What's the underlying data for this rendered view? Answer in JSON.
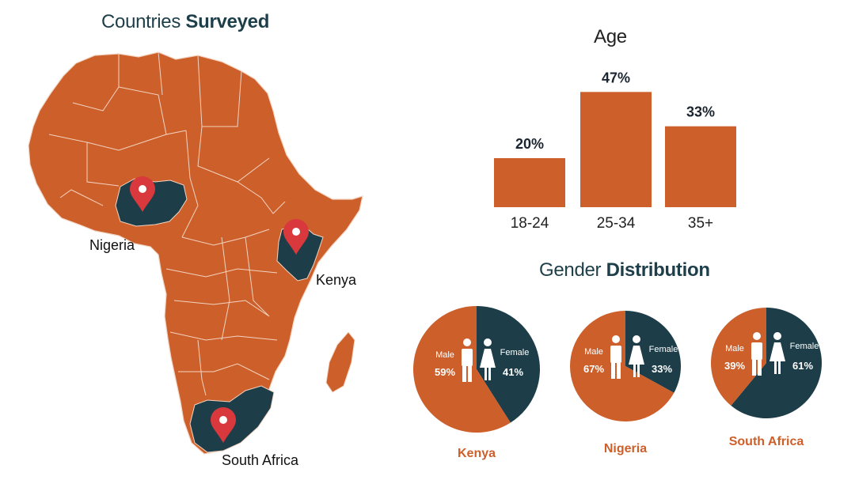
{
  "colors": {
    "orange": "#cd5f2a",
    "teal": "#1d3e48",
    "pin": "#d9383c",
    "border": "#f2d4c2"
  },
  "map": {
    "title_prefix": "Countries ",
    "title_bold": "Surveyed",
    "countries": [
      {
        "name": "Nigeria",
        "icon": "map-pin-icon"
      },
      {
        "name": "Kenya",
        "icon": "map-pin-icon"
      },
      {
        "name": "South Africa",
        "icon": "map-pin-icon"
      }
    ]
  },
  "gender": {
    "title_prefix": "Gender ",
    "title_bold": "Distribution"
  },
  "chart_data": [
    {
      "type": "bar",
      "title": "Age",
      "categories": [
        "18-24",
        "25-34",
        "35+"
      ],
      "values": [
        20,
        47,
        33
      ],
      "value_labels": [
        "20%",
        "47%",
        "33%"
      ],
      "ylim": [
        0,
        50
      ],
      "grid": false
    },
    {
      "type": "pie",
      "title": "Kenya",
      "labels": [
        "Male",
        "Female"
      ],
      "values": [
        59,
        41
      ],
      "value_labels": [
        "59%",
        "41%"
      ],
      "icons": [
        "male-person-icon",
        "female-person-icon"
      ]
    },
    {
      "type": "pie",
      "title": "Nigeria",
      "labels": [
        "Male",
        "Female"
      ],
      "values": [
        67,
        33
      ],
      "value_labels": [
        "67%",
        "33%"
      ],
      "icons": [
        "male-person-icon",
        "female-person-icon"
      ]
    },
    {
      "type": "pie",
      "title": "South Africa",
      "labels": [
        "Male",
        "Female"
      ],
      "values": [
        39,
        61
      ],
      "value_labels": [
        "39%",
        "61%"
      ],
      "icons": [
        "male-person-icon",
        "female-person-icon"
      ]
    }
  ]
}
